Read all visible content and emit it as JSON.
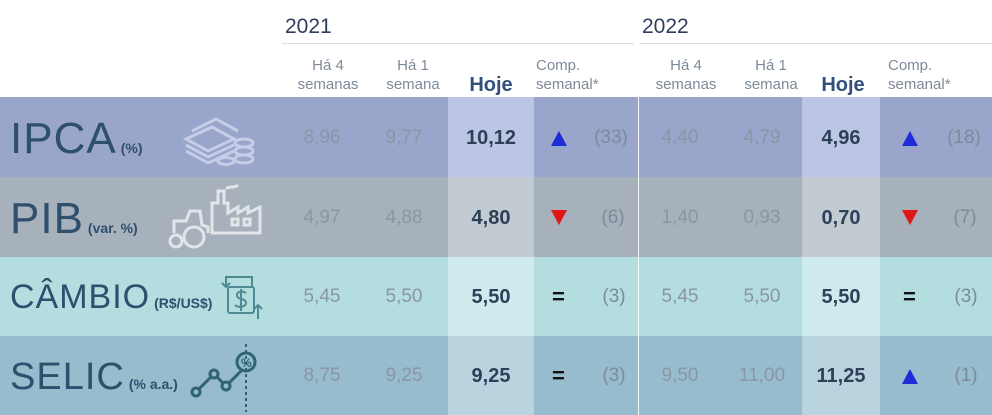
{
  "years": {
    "y2021": "2021",
    "y2022": "2022"
  },
  "headers": {
    "ha4": "Há 4\nsemanas",
    "ha1": "Há 1\nsemana",
    "hoje": "Hoje",
    "comp": "Comp.\nsemanal*"
  },
  "rows": [
    {
      "name": "IPCA",
      "unit": "(%)",
      "icon": "money-stack-icon",
      "y2021": {
        "ha4": "8,96",
        "ha1": "9,77",
        "hoje": "10,12",
        "trend": "up",
        "count": "(33)"
      },
      "y2022": {
        "ha4": "4,40",
        "ha1": "4,79",
        "hoje": "4,96",
        "trend": "up",
        "count": "(18)"
      }
    },
    {
      "name": "PIB",
      "unit": "(var. %)",
      "icon": "factory-tractor-icon",
      "y2021": {
        "ha4": "4,97",
        "ha1": "4,88",
        "hoje": "4,80",
        "trend": "down",
        "count": "(6)"
      },
      "y2022": {
        "ha4": "1,40",
        "ha1": "0,93",
        "hoje": "0,70",
        "trend": "down",
        "count": "(7)"
      }
    },
    {
      "name": "CÂMBIO",
      "unit": "(R$/US$)",
      "icon": "exchange-icon",
      "y2021": {
        "ha4": "5,45",
        "ha1": "5,50",
        "hoje": "5,50",
        "trend": "equal",
        "count": "(3)"
      },
      "y2022": {
        "ha4": "5,45",
        "ha1": "5,50",
        "hoje": "5,50",
        "trend": "equal",
        "count": "(3)"
      }
    },
    {
      "name": "SELIC",
      "unit": "(% a.a.)",
      "icon": "rate-chart-icon",
      "y2021": {
        "ha4": "8,75",
        "ha1": "9,25",
        "hoje": "9,25",
        "trend": "equal",
        "count": "(3)"
      },
      "y2022": {
        "ha4": "9,50",
        "ha1": "11,00",
        "hoje": "11,25",
        "trend": "up",
        "count": "(1)"
      }
    }
  ],
  "trend_symbols": {
    "equal": "="
  },
  "colors": {
    "ipca_bg": "#9aa5cc",
    "ipca_hl": "#bcc5e4",
    "pib_bg": "#a7b1bb",
    "pib_hl": "#c2cad2",
    "cambio_bg": "#b4dde0",
    "cambio_hl": "#cfeaec",
    "selic_bg": "#97bccd",
    "selic_hl": "#b9d3df",
    "up": "#1f2bd6",
    "down": "#e01717"
  }
}
